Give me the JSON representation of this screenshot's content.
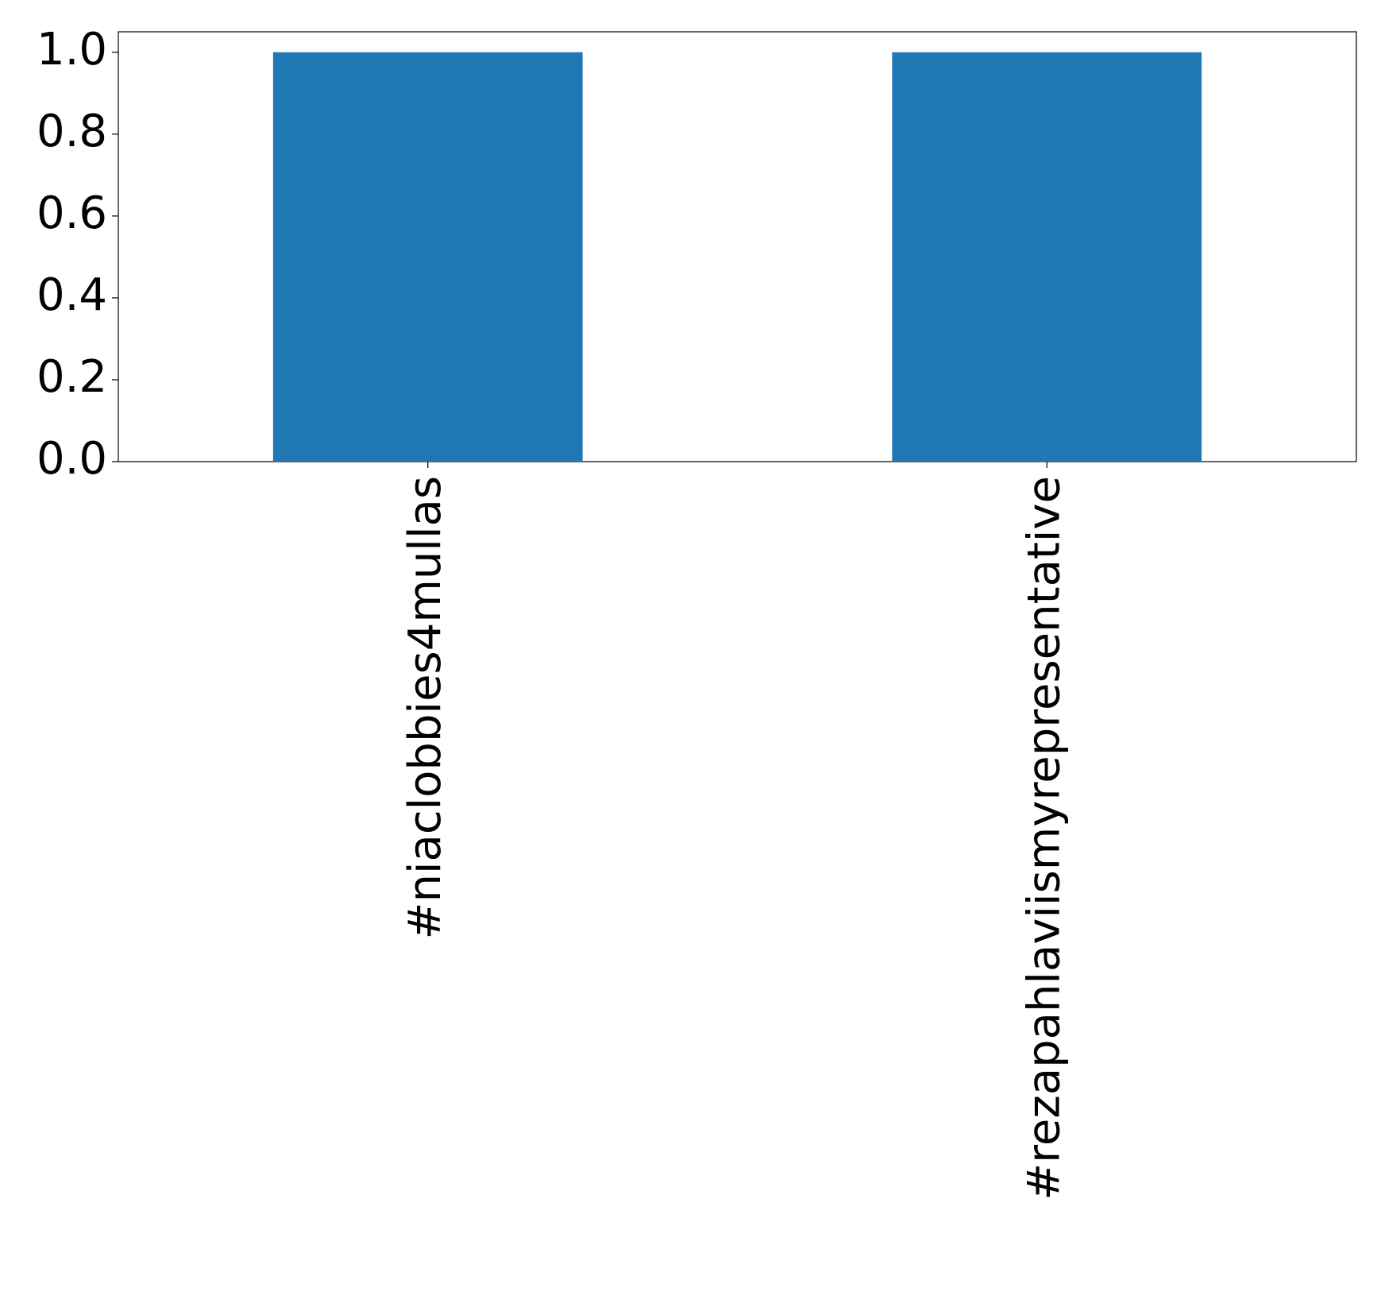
{
  "chart_data": {
    "type": "bar",
    "categories": [
      "#niaclobbies4mullas",
      "#rezapahlaviismyrepresentative"
    ],
    "values": [
      1,
      1
    ],
    "color": "#1f77b4",
    "ylim": [
      0,
      1.05
    ],
    "yticks": [
      {
        "value": 0,
        "label": "0.0"
      },
      0.2,
      0.4,
      0.6,
      0.8,
      {
        "value": 1,
        "label": "1.0"
      }
    ],
    "grid": false
  }
}
